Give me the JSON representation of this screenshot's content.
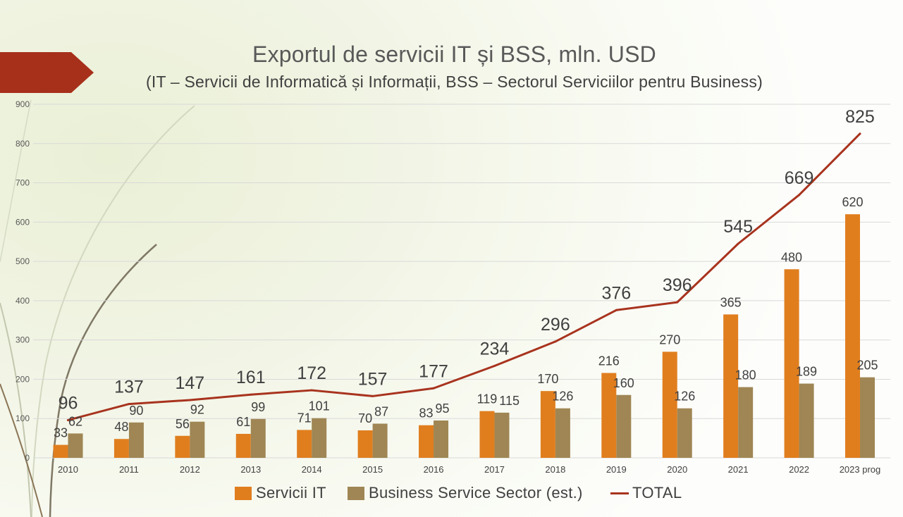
{
  "slide": {
    "accent_color": "#A7301B"
  },
  "chart_data": {
    "type": "bar",
    "title": "Exportul de servicii IT și BSS, mln. USD",
    "subtitle": "(IT – Servicii de Informatică și Informații, BSS – Sectorul Serviciilor pentru Business)",
    "categories": [
      "2010",
      "2011",
      "2012",
      "2013",
      "2014",
      "2015",
      "2016",
      "2017",
      "2018",
      "2019",
      "2020",
      "2021",
      "2022",
      "2023 prog"
    ],
    "ylim": [
      0,
      900
    ],
    "yticks": [
      0,
      100,
      200,
      300,
      400,
      500,
      600,
      700,
      800,
      900
    ],
    "grid": true,
    "legend_position": "bottom",
    "data_labels": true,
    "series": [
      {
        "name": "Servicii IT",
        "type": "bar",
        "color": "#E07E1E",
        "values": [
          33,
          48,
          56,
          61,
          71,
          70,
          83,
          119,
          170,
          216,
          270,
          365,
          480,
          620
        ]
      },
      {
        "name": "Business Service Sector (est.)",
        "type": "bar",
        "color": "#9F8654",
        "values": [
          62,
          90,
          92,
          99,
          101,
          87,
          95,
          115,
          126,
          160,
          126,
          180,
          189,
          205
        ]
      },
      {
        "name": "TOTAL",
        "type": "line",
        "color": "#A8331E",
        "values": [
          96,
          137,
          147,
          161,
          172,
          157,
          177,
          234,
          296,
          376,
          396,
          545,
          669,
          825
        ]
      }
    ]
  }
}
